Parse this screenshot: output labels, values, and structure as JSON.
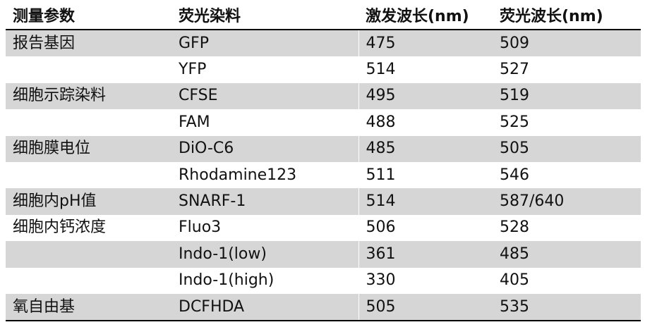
{
  "table": {
    "headers": [
      "测量参数",
      "荧光染料",
      "激发波长(nm)",
      "荧光波长(nm)"
    ],
    "rows": [
      {
        "param": "报告基因",
        "dye": "GFP",
        "ex": "475",
        "em": "509",
        "shaded": true
      },
      {
        "param": "",
        "dye": "YFP",
        "ex": "514",
        "em": "527",
        "shaded": false
      },
      {
        "param": "细胞示踪染料",
        "dye": "CFSE",
        "ex": "495",
        "em": "519",
        "shaded": true
      },
      {
        "param": "",
        "dye": "FAM",
        "ex": "488",
        "em": "525",
        "shaded": false
      },
      {
        "param": "细胞膜电位",
        "dye": "DiO-C6",
        "ex": "485",
        "em": "505",
        "shaded": true
      },
      {
        "param": "",
        "dye": "Rhodamine123",
        "ex": "511",
        "em": "546",
        "shaded": false
      },
      {
        "param": "细胞内pH值",
        "dye": "SNARF-1",
        "ex": "514",
        "em": "587/640",
        "shaded": true
      },
      {
        "param": "细胞内钙浓度",
        "dye": "Fluo3",
        "ex": "506",
        "em": "528",
        "shaded": false
      },
      {
        "param": "",
        "dye": "Indo-1(low)",
        "ex": "361",
        "em": "485",
        "shaded": true
      },
      {
        "param": "",
        "dye": "Indo-1(high)",
        "ex": "330",
        "em": "405",
        "shaded": false
      },
      {
        "param": "氧自由基",
        "dye": "DCFHDA",
        "ex": "505",
        "em": "535",
        "shaded": true
      }
    ]
  }
}
